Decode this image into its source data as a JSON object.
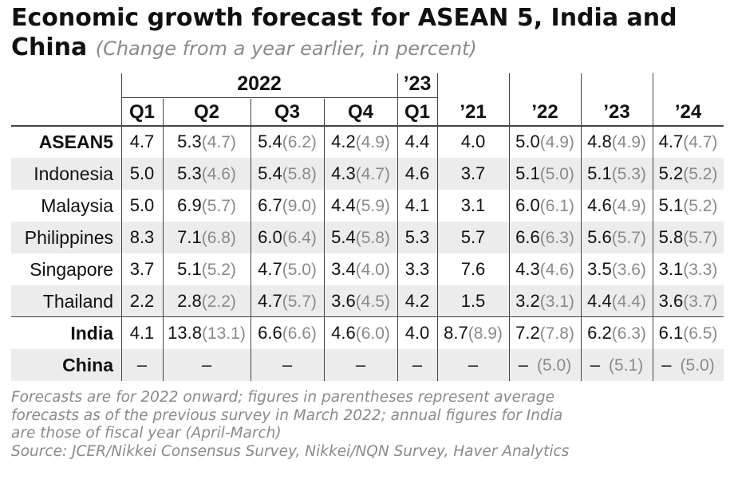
{
  "title": {
    "main": "Economic growth forecast for ASEAN 5, India and China",
    "subtitle": "(Change from a year earlier, in percent)"
  },
  "header": {
    "year_2022": "2022",
    "year_23_q": "’23",
    "q1": "Q1",
    "q2": "Q2",
    "q3": "Q3",
    "q4": "Q4",
    "q1_23": "Q1",
    "y21": "’21",
    "y22": "’22",
    "y23": "’23",
    "y24": "’24"
  },
  "rows": [
    {
      "label": "ASEAN5",
      "bold": true,
      "cells": [
        [
          "4.7",
          ""
        ],
        [
          "5.3",
          "4.7"
        ],
        [
          "5.4",
          "6.2"
        ],
        [
          "4.2",
          "4.9"
        ],
        [
          "4.4",
          ""
        ],
        [
          "4.0",
          ""
        ],
        [
          "5.0",
          "4.9"
        ],
        [
          "4.8",
          "4.9"
        ],
        [
          "4.7",
          "4.7"
        ]
      ]
    },
    {
      "label": "Indonesia",
      "bold": false,
      "cells": [
        [
          "5.0",
          ""
        ],
        [
          "5.3",
          "4.6"
        ],
        [
          "5.4",
          "5.8"
        ],
        [
          "4.3",
          "4.7"
        ],
        [
          "4.6",
          ""
        ],
        [
          "3.7",
          ""
        ],
        [
          "5.1",
          "5.0"
        ],
        [
          "5.1",
          "5.3"
        ],
        [
          "5.2",
          "5.2"
        ]
      ]
    },
    {
      "label": "Malaysia",
      "bold": false,
      "cells": [
        [
          "5.0",
          ""
        ],
        [
          "6.9",
          "5.7"
        ],
        [
          "6.7",
          "9.0"
        ],
        [
          "4.4",
          "5.9"
        ],
        [
          "4.1",
          ""
        ],
        [
          "3.1",
          ""
        ],
        [
          "6.0",
          "6.1"
        ],
        [
          "4.6",
          "4.9"
        ],
        [
          "5.1",
          "5.2"
        ]
      ]
    },
    {
      "label": "Philippines",
      "bold": false,
      "cells": [
        [
          "8.3",
          ""
        ],
        [
          "7.1",
          "6.8"
        ],
        [
          "6.0",
          "6.4"
        ],
        [
          "5.4",
          "5.8"
        ],
        [
          "5.3",
          ""
        ],
        [
          "5.7",
          ""
        ],
        [
          "6.6",
          "6.3"
        ],
        [
          "5.6",
          "5.7"
        ],
        [
          "5.8",
          "5.7"
        ]
      ]
    },
    {
      "label": "Singapore",
      "bold": false,
      "cells": [
        [
          "3.7",
          ""
        ],
        [
          "5.1",
          "5.2"
        ],
        [
          "4.7",
          "5.0"
        ],
        [
          "3.4",
          "4.0"
        ],
        [
          "3.3",
          ""
        ],
        [
          "7.6",
          ""
        ],
        [
          "4.3",
          "4.6"
        ],
        [
          "3.5",
          "3.6"
        ],
        [
          "3.1",
          "3.3"
        ]
      ]
    },
    {
      "label": "Thailand",
      "bold": false,
      "cells": [
        [
          "2.2",
          ""
        ],
        [
          "2.8",
          "2.2"
        ],
        [
          "4.7",
          "5.7"
        ],
        [
          "3.6",
          "4.5"
        ],
        [
          "4.2",
          ""
        ],
        [
          "1.5",
          ""
        ],
        [
          "3.2",
          "3.1"
        ],
        [
          "4.4",
          "4.4"
        ],
        [
          "3.6",
          "3.7"
        ]
      ]
    },
    {
      "label": "India",
      "bold": true,
      "cells": [
        [
          "4.1",
          ""
        ],
        [
          "13.8",
          "13.1"
        ],
        [
          "6.6",
          "6.6"
        ],
        [
          "4.6",
          "6.0"
        ],
        [
          "4.0",
          ""
        ],
        [
          "8.7",
          "8.9"
        ],
        [
          "7.2",
          "7.8"
        ],
        [
          "6.2",
          "6.3"
        ],
        [
          "6.1",
          "6.5"
        ]
      ]
    },
    {
      "label": "China",
      "bold": true,
      "cells": [
        [
          "–",
          ""
        ],
        [
          "–",
          ""
        ],
        [
          "–",
          ""
        ],
        [
          "–",
          ""
        ],
        [
          "–",
          ""
        ],
        [
          "–",
          ""
        ],
        [
          "–",
          "5.0"
        ],
        [
          "–",
          "5.1"
        ],
        [
          "–",
          "5.0"
        ]
      ]
    }
  ],
  "footnote": {
    "line1": "Forecasts are for 2022 onward; figures in parentheses represent average",
    "line2": "forecasts as of the previous survey in March 2022; annual figures for India",
    "line3": "are those of fiscal year (April-March)",
    "source": "Source: JCER/Nikkei Consensus Survey, Nikkei/NQN Survey, Haver Analytics"
  }
}
